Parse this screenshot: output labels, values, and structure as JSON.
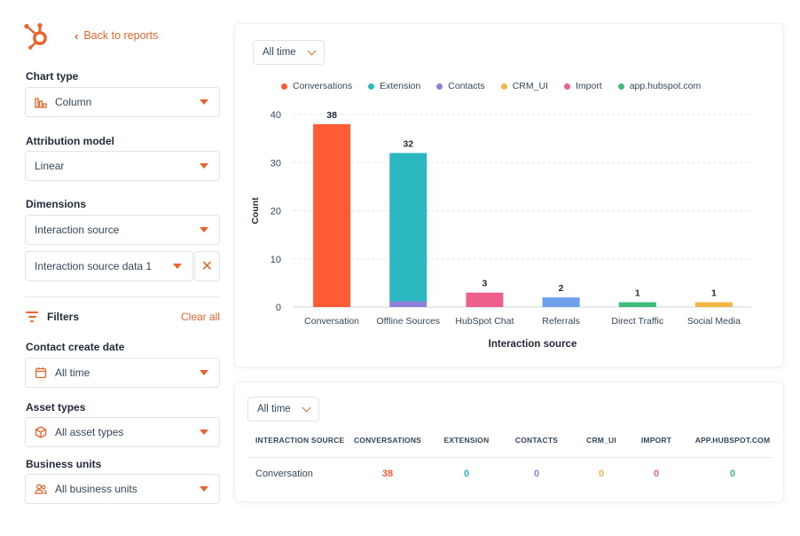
{
  "nav": {
    "back_label": "Back to reports"
  },
  "sidebar": {
    "chart_type": {
      "label": "Chart type",
      "value": "Column"
    },
    "attribution_model": {
      "label": "Attribution model",
      "value": "Linear"
    },
    "dimensions": {
      "label": "Dimensions",
      "primary": "Interaction source",
      "secondary": "Interaction source data 1"
    },
    "filters": {
      "title": "Filters",
      "clear_label": "Clear all"
    },
    "contact_create_date": {
      "label": "Contact create date",
      "value": "All time"
    },
    "asset_types": {
      "label": "Asset types",
      "value": "All asset types"
    },
    "business_units": {
      "label": "Business units",
      "value": "All business units"
    }
  },
  "chart_panel": {
    "time_filter": "All time"
  },
  "table_panel": {
    "time_filter": "All time",
    "columns": [
      "INTERACTION SOURCE",
      "CONVERSATIONS",
      "EXTENSION",
      "CONTACTS",
      "CRM_UI",
      "IMPORT",
      "APP.HUBSPOT.COM"
    ],
    "rows": [
      {
        "source": "Conversation",
        "values": [
          "38",
          "0",
          "0",
          "0",
          "0",
          "0"
        ]
      }
    ]
  },
  "colors": {
    "accent": "#e8642c",
    "series": [
      "#ff5c35",
      "#2cb8c0",
      "#8f7fd7",
      "#f0b746",
      "#ee5f8a",
      "#3fbc7c"
    ],
    "bars": [
      "#ff5c35",
      "#2cb8c0",
      "#ee5f8a",
      "#6ea0ea",
      "#3fbc7c",
      "#f0b746"
    ]
  },
  "chart_data": {
    "type": "bar",
    "stacked": true,
    "xlabel": "Interaction source",
    "ylabel": "Count",
    "ylim": [
      0,
      40
    ],
    "yticks": [
      0,
      10,
      20,
      30,
      40
    ],
    "grid": true,
    "legend": "top",
    "legend_entries": [
      "Conversations",
      "Extension",
      "Contacts",
      "CRM_UI",
      "Import",
      "app.hubspot.com"
    ],
    "categories": [
      "Conversation",
      "Offline Sources",
      "HubSpot Chat",
      "Referrals",
      "Direct Traffic",
      "Social Media"
    ],
    "totals": [
      38,
      32,
      3,
      2,
      1,
      1
    ],
    "segments": [
      [
        {
          "series": "Conversations",
          "value": 38
        }
      ],
      [
        {
          "series": "Contacts",
          "value": 1.2
        },
        {
          "series": "Extension",
          "value": 30.8
        }
      ],
      [
        {
          "series": "Import",
          "value": 3
        }
      ],
      [
        {
          "series": "Referrals",
          "value": 2
        }
      ],
      [
        {
          "series": "app.hubspot.com",
          "value": 1
        }
      ],
      [
        {
          "series": "CRM_UI",
          "value": 1
        }
      ]
    ]
  }
}
